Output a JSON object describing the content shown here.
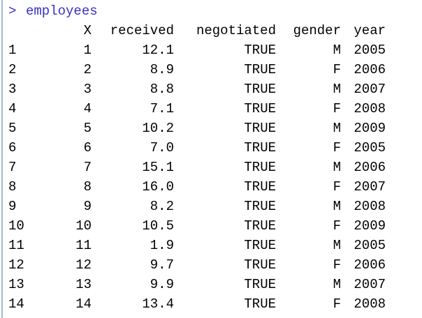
{
  "console": {
    "prompt": ">",
    "command": "employees",
    "columns": [
      "X",
      "received",
      "negotiated",
      "gender",
      "year"
    ],
    "rows": [
      {
        "name": "1",
        "cells": [
          "1",
          "12.1",
          "TRUE",
          "M",
          "2005"
        ]
      },
      {
        "name": "2",
        "cells": [
          "2",
          "8.9",
          "TRUE",
          "F",
          "2006"
        ]
      },
      {
        "name": "3",
        "cells": [
          "3",
          "8.8",
          "TRUE",
          "M",
          "2007"
        ]
      },
      {
        "name": "4",
        "cells": [
          "4",
          "7.1",
          "TRUE",
          "F",
          "2008"
        ]
      },
      {
        "name": "5",
        "cells": [
          "5",
          "10.2",
          "TRUE",
          "M",
          "2009"
        ]
      },
      {
        "name": "6",
        "cells": [
          "6",
          "7.0",
          "TRUE",
          "F",
          "2005"
        ]
      },
      {
        "name": "7",
        "cells": [
          "7",
          "15.1",
          "TRUE",
          "M",
          "2006"
        ]
      },
      {
        "name": "8",
        "cells": [
          "8",
          "16.0",
          "TRUE",
          "F",
          "2007"
        ]
      },
      {
        "name": "9",
        "cells": [
          "9",
          "8.2",
          "TRUE",
          "M",
          "2008"
        ]
      },
      {
        "name": "10",
        "cells": [
          "10",
          "10.5",
          "TRUE",
          "F",
          "2009"
        ]
      },
      {
        "name": "11",
        "cells": [
          "11",
          "1.9",
          "TRUE",
          "M",
          "2005"
        ]
      },
      {
        "name": "12",
        "cells": [
          "12",
          "9.7",
          "TRUE",
          "F",
          "2006"
        ]
      },
      {
        "name": "13",
        "cells": [
          "13",
          "9.9",
          "TRUE",
          "M",
          "2007"
        ]
      },
      {
        "name": "14",
        "cells": [
          "14",
          "13.4",
          "TRUE",
          "F",
          "2008"
        ]
      }
    ]
  }
}
